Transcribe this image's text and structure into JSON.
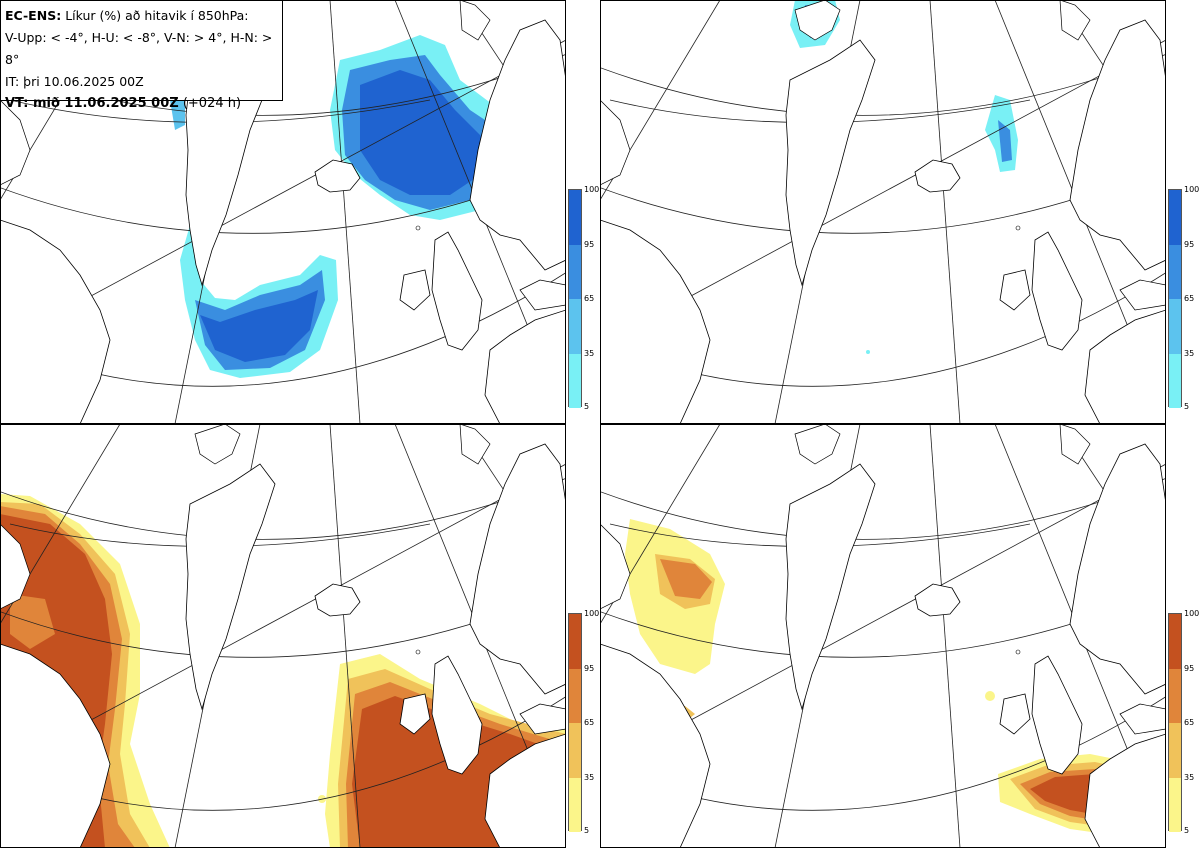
{
  "header": {
    "line1_bold": "EC-ENS:",
    "line1_rest": "Líkur (%) að hitavik í 850hPa:",
    "line2": "V-Upp: < -4°, H-U: < -8°, V-N: > 4°, H-N: > 8°",
    "line3": "IT: þri 10.06.2025 00Z",
    "line4_bold": "VT: mið 11.06.2025 00Z",
    "line4_rest": "(+024 h)"
  },
  "colorbar_cold": {
    "ticks": [
      "100",
      "95",
      "65",
      "35",
      "5"
    ],
    "colors": [
      "#1f63d0",
      "#3a8ee0",
      "#5cc3ee",
      "#79f0f5"
    ]
  },
  "colorbar_warm": {
    "ticks": [
      "100",
      "95",
      "65",
      "35",
      "5"
    ],
    "colors": [
      "#c4511f",
      "#e0853a",
      "#f0c25a",
      "#fbf58a"
    ]
  },
  "panels": [
    {
      "id": "top-left",
      "variable": "V-Upp"
    },
    {
      "id": "top-right",
      "variable": "H-U"
    },
    {
      "id": "bottom-left",
      "variable": "V-N"
    },
    {
      "id": "bottom-right",
      "variable": "H-N"
    }
  ]
}
